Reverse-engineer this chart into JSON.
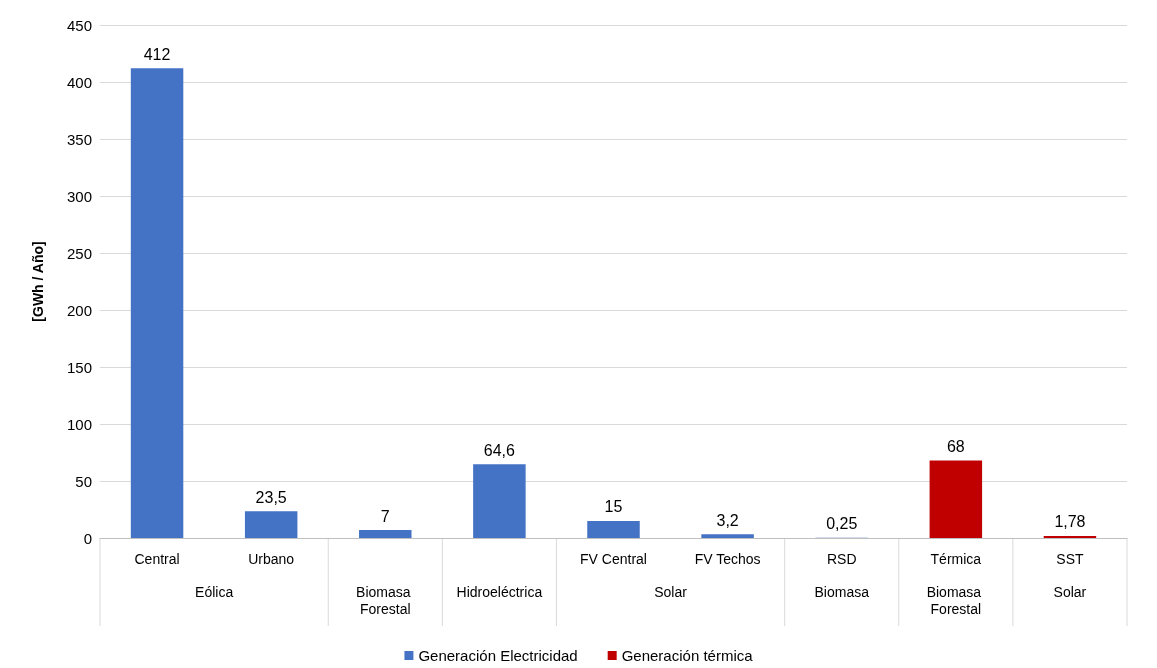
{
  "chart_data": {
    "type": "bar",
    "ylabel": "[GWh / Año]",
    "categories": [
      "Central",
      "Urbano",
      null,
      null,
      "FV Central",
      "FV Techos",
      "RSD",
      "Térmica",
      "SST"
    ],
    "series": [
      {
        "name": "Generación Electricidad",
        "color": "#4472c4",
        "values": [
          412,
          23.5,
          7,
          64.6,
          15,
          3.2,
          0.25,
          null,
          null
        ],
        "value_labels": [
          "412",
          "23,5",
          "7",
          "64,6",
          "15",
          "3,2",
          "0,25",
          null,
          null
        ]
      },
      {
        "name": "Generación térmica",
        "color": "#c00000",
        "values": [
          null,
          null,
          null,
          null,
          null,
          null,
          null,
          68,
          1.78
        ],
        "value_labels": [
          null,
          null,
          null,
          null,
          null,
          null,
          null,
          "68",
          "1,78"
        ]
      }
    ],
    "annotations": [
      "Eólica",
      "Biomasa Forestal",
      "Hidroeléctrica",
      "Solar",
      "Biomasa",
      "Biomasa Forestal",
      "Solar"
    ],
    "ylim": [
      0,
      450
    ],
    "yticks": [
      0,
      50,
      100,
      150,
      200,
      250,
      300,
      350,
      400,
      450
    ],
    "grid": "y",
    "legend": "bottom"
  }
}
